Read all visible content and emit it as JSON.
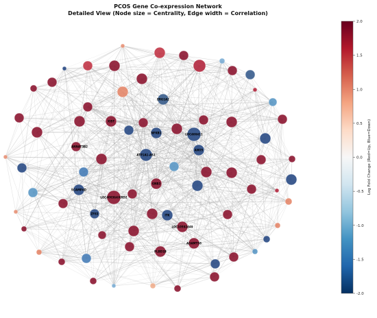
{
  "title": "PCOS Gene Co-expression Network",
  "subtitle": "Detailed View (Node size = Centrality, Edge width = Correlation)",
  "colorbar": {
    "label": "Log Fold Change (Red=Up, Blue=Down)",
    "min": -2.0,
    "max": 2.0,
    "ticks": [
      "2.0",
      "1.5",
      "1.0",
      "0.5",
      "0.0",
      "-0.5",
      "-1.0",
      "-1.5",
      "-2.0"
    ],
    "colors": [
      "#67001f",
      "#b2182b",
      "#d6604d",
      "#f4a582",
      "#fddbc7",
      "#f7f7f7",
      "#d1e5f0",
      "#92c5de",
      "#4393c3",
      "#2166ac",
      "#053061"
    ]
  },
  "labels": [
    "ERG1A2",
    "XIST",
    "NFKB1",
    "LOC400411",
    "ANNAT3B2",
    "ANO5",
    "ATP1A1-AS1",
    "SCAMP4D",
    "LOC400364/KRD2",
    "GNB3",
    "ZF83",
    "ITK",
    "LOC10592449",
    "ADAMTS8",
    "PLBD1B"
  ]
}
